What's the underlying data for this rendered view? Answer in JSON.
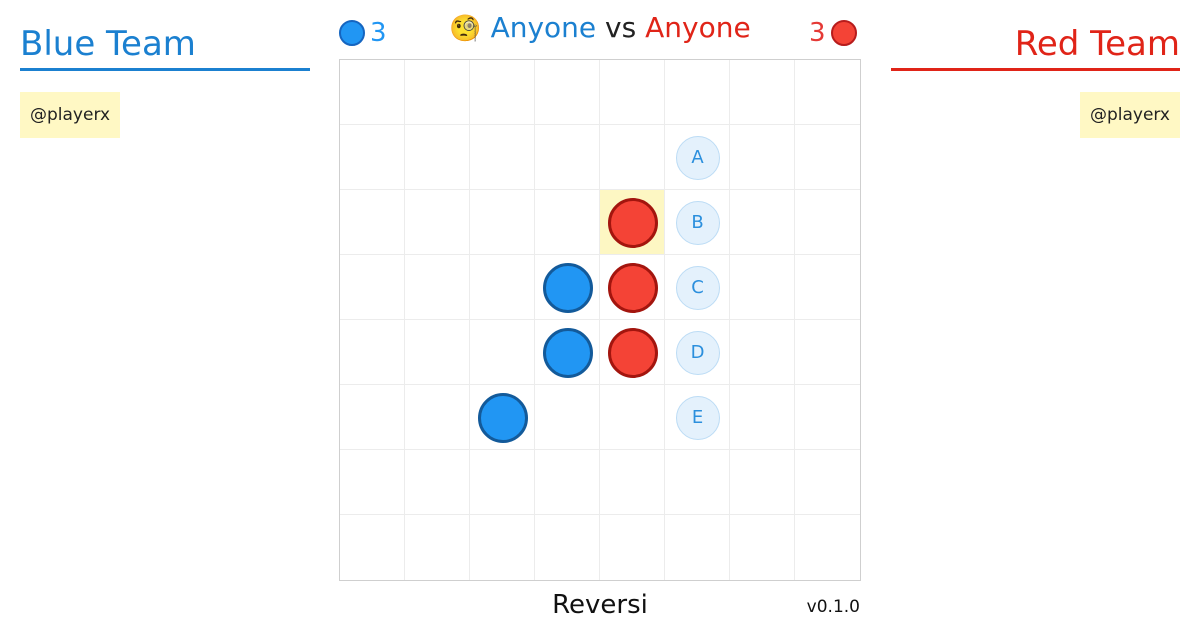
{
  "blue_team": {
    "title": "Blue Team",
    "player": "@playerx",
    "score": "3"
  },
  "red_team": {
    "title": "Red Team",
    "player": "@playerx",
    "score": "3"
  },
  "matchup": {
    "emoji": "🧐",
    "left": "Anyone",
    "vs": "vs",
    "right": "Anyone"
  },
  "board": {
    "size": 8,
    "highlight": [
      [
        2,
        4
      ]
    ],
    "discs": [
      {
        "row": 2,
        "col": 4,
        "color": "red"
      },
      {
        "row": 3,
        "col": 3,
        "color": "blue"
      },
      {
        "row": 3,
        "col": 4,
        "color": "red"
      },
      {
        "row": 4,
        "col": 3,
        "color": "blue"
      },
      {
        "row": 4,
        "col": 4,
        "color": "red"
      },
      {
        "row": 5,
        "col": 2,
        "color": "blue"
      }
    ],
    "hints": [
      {
        "row": 1,
        "col": 5,
        "label": "A"
      },
      {
        "row": 2,
        "col": 5,
        "label": "B"
      },
      {
        "row": 3,
        "col": 5,
        "label": "C"
      },
      {
        "row": 4,
        "col": 5,
        "label": "D"
      },
      {
        "row": 5,
        "col": 5,
        "label": "E"
      }
    ]
  },
  "footer": {
    "game_name": "Reversi",
    "version": "v0.1.0"
  },
  "colors": {
    "blue": "#2196f3",
    "red": "#f44336",
    "highlight": "#fdf7c3"
  }
}
